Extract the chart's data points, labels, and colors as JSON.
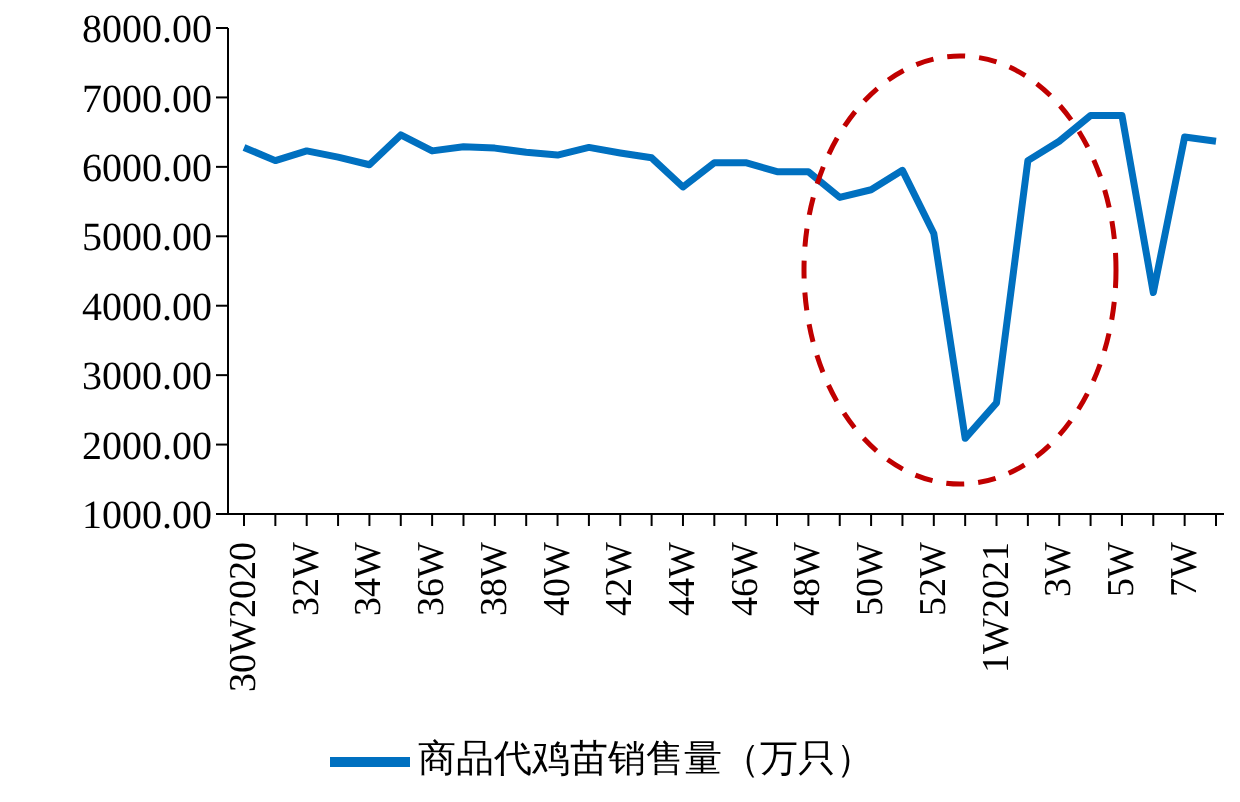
{
  "chart_data": {
    "type": "line",
    "categories": [
      "30W2020",
      null,
      "32W",
      null,
      "34W",
      null,
      "36W",
      null,
      "38W",
      null,
      "40W",
      null,
      "42W",
      null,
      "44W",
      null,
      "46W",
      null,
      "48W",
      null,
      "50W",
      null,
      "52W",
      null,
      "1W2021",
      null,
      "3W",
      null,
      "5W",
      null,
      "7W",
      null
    ],
    "series": [
      {
        "name": "商品代鸡苗销售量（万只）",
        "color": "#0070c0",
        "values": [
          6280,
          6090,
          6230,
          6140,
          6030,
          6460,
          6230,
          6290,
          6270,
          6210,
          6170,
          6280,
          6200,
          6130,
          5710,
          6060,
          6060,
          5930,
          5930,
          5560,
          5670,
          5950,
          5040,
          2090,
          2600,
          6090,
          6370,
          6740,
          6740,
          4190,
          6430,
          6370
        ]
      }
    ],
    "ylim": [
      1000,
      8000
    ],
    "yticks": [
      {
        "value": 1000,
        "label": "1000.00"
      },
      {
        "value": 2000,
        "label": "2000.00"
      },
      {
        "value": 3000,
        "label": "3000.00"
      },
      {
        "value": 4000,
        "label": "4000.00"
      },
      {
        "value": 5000,
        "label": "5000.00"
      },
      {
        "value": 6000,
        "label": "6000.00"
      },
      {
        "value": 7000,
        "label": "7000.00"
      },
      {
        "value": 8000,
        "label": "8000.00"
      }
    ],
    "grid": false,
    "legend": "bottom",
    "marker": "none",
    "line_style": "solid"
  }
}
